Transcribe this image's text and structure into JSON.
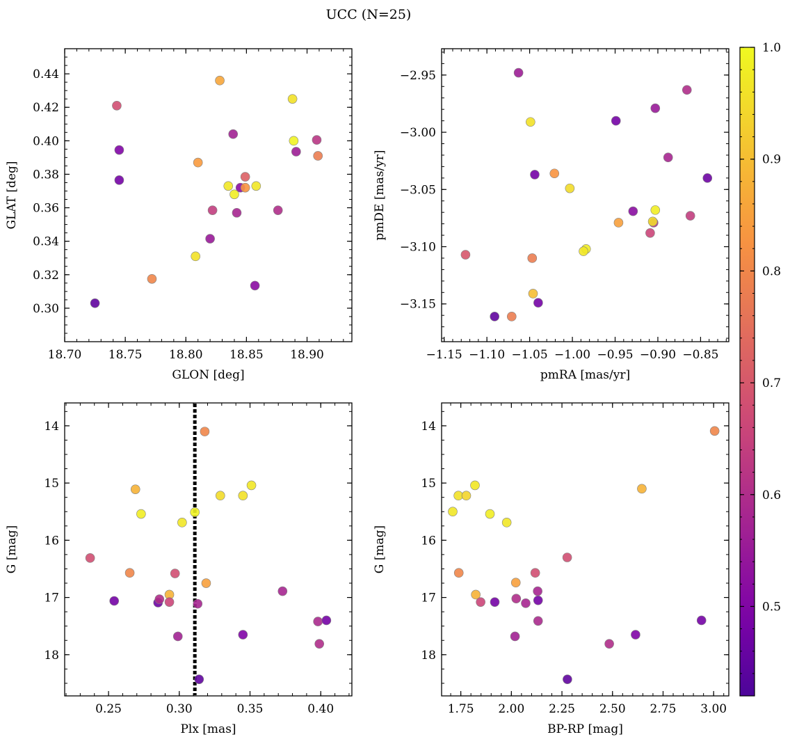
{
  "figure": {
    "title": "UCC (N=25)"
  },
  "colors": {
    "colormap": "plasma",
    "point_edge": "#808080",
    "reference_line": "#000000"
  },
  "chart_data": [
    {
      "type": "scatter",
      "panel": "top-left",
      "xlabel": "GLON [deg]",
      "ylabel": "GLAT [deg]",
      "xlim": [
        18.7,
        18.937
      ],
      "ylim": [
        0.28,
        0.455
      ],
      "xticks": [
        "18.70",
        "18.75",
        "18.80",
        "18.85",
        "18.90"
      ],
      "yticks": [
        "0.30",
        "0.32",
        "0.34",
        "0.36",
        "0.38",
        "0.40",
        "0.42",
        "0.44"
      ],
      "x_minor": 0.01,
      "y_minor": 0.005,
      "points": [
        {
          "x": 18.725,
          "y": 0.303,
          "c": 0.45
        },
        {
          "x": 18.745,
          "y": 0.3945,
          "c": 0.5
        },
        {
          "x": 18.745,
          "y": 0.3765,
          "c": 0.48
        },
        {
          "x": 18.743,
          "y": 0.421,
          "c": 0.68
        },
        {
          "x": 18.772,
          "y": 0.3175,
          "c": 0.8
        },
        {
          "x": 18.808,
          "y": 0.331,
          "c": 0.96
        },
        {
          "x": 18.81,
          "y": 0.387,
          "c": 0.84
        },
        {
          "x": 18.82,
          "y": 0.3415,
          "c": 0.55
        },
        {
          "x": 18.822,
          "y": 0.3585,
          "c": 0.64
        },
        {
          "x": 18.828,
          "y": 0.436,
          "c": 0.86
        },
        {
          "x": 18.835,
          "y": 0.373,
          "c": 0.97
        },
        {
          "x": 18.839,
          "y": 0.404,
          "c": 0.57
        },
        {
          "x": 18.84,
          "y": 0.368,
          "c": 0.98
        },
        {
          "x": 18.842,
          "y": 0.357,
          "c": 0.58
        },
        {
          "x": 18.845,
          "y": 0.372,
          "c": 0.52
        },
        {
          "x": 18.849,
          "y": 0.3785,
          "c": 0.72
        },
        {
          "x": 18.849,
          "y": 0.372,
          "c": 0.83
        },
        {
          "x": 18.857,
          "y": 0.3135,
          "c": 0.52
        },
        {
          "x": 18.858,
          "y": 0.373,
          "c": 0.97
        },
        {
          "x": 18.876,
          "y": 0.3585,
          "c": 0.6
        },
        {
          "x": 18.888,
          "y": 0.425,
          "c": 0.96
        },
        {
          "x": 18.889,
          "y": 0.4,
          "c": 0.99
        },
        {
          "x": 18.891,
          "y": 0.3935,
          "c": 0.56
        },
        {
          "x": 18.908,
          "y": 0.4005,
          "c": 0.62
        },
        {
          "x": 18.909,
          "y": 0.391,
          "c": 0.78
        }
      ]
    },
    {
      "type": "scatter",
      "panel": "top-right",
      "xlabel": "pmRA [mas/yr]",
      "ylabel": "pmDE [mas/yr]",
      "xlim": [
        -1.153,
        -0.817
      ],
      "ylim": [
        -3.183,
        -2.927
      ],
      "xticks": [
        "−1.15",
        "−1.10",
        "−1.05",
        "−1.00",
        "−0.95",
        "−0.90",
        "−0.85"
      ],
      "yticks": [
        "−2.95",
        "−3.00",
        "−3.05",
        "−3.10",
        "−3.15"
      ],
      "x_minor": 0.01,
      "y_minor": 0.01,
      "points": [
        {
          "x": -1.063,
          "y": -2.948,
          "c": 0.56
        },
        {
          "x": -0.866,
          "y": -2.963,
          "c": 0.6
        },
        {
          "x": -0.903,
          "y": -2.979,
          "c": 0.55
        },
        {
          "x": -1.049,
          "y": -2.991,
          "c": 0.96
        },
        {
          "x": -0.949,
          "y": -2.99,
          "c": 0.48
        },
        {
          "x": -0.888,
          "y": -3.022,
          "c": 0.58
        },
        {
          "x": -1.044,
          "y": -3.037,
          "c": 0.48
        },
        {
          "x": -1.021,
          "y": -3.036,
          "c": 0.83
        },
        {
          "x": -0.842,
          "y": -3.04,
          "c": 0.47
        },
        {
          "x": -1.003,
          "y": -3.049,
          "c": 0.95
        },
        {
          "x": -0.929,
          "y": -3.069,
          "c": 0.52
        },
        {
          "x": -0.903,
          "y": -3.068,
          "c": 0.98
        },
        {
          "x": -0.862,
          "y": -3.073,
          "c": 0.64
        },
        {
          "x": -0.946,
          "y": -3.079,
          "c": 0.85
        },
        {
          "x": -0.905,
          "y": -3.079,
          "c": 0.6
        },
        {
          "x": -0.906,
          "y": -3.078,
          "c": 0.95
        },
        {
          "x": -0.909,
          "y": -3.088,
          "c": 0.66
        },
        {
          "x": -0.984,
          "y": -3.102,
          "c": 0.98
        },
        {
          "x": -0.987,
          "y": -3.104,
          "c": 0.97
        },
        {
          "x": -1.125,
          "y": -3.107,
          "c": 0.7
        },
        {
          "x": -1.047,
          "y": -3.11,
          "c": 0.78
        },
        {
          "x": -1.046,
          "y": -3.141,
          "c": 0.9
        },
        {
          "x": -1.04,
          "y": -3.149,
          "c": 0.48
        },
        {
          "x": -1.091,
          "y": -3.161,
          "c": 0.45
        },
        {
          "x": -1.071,
          "y": -3.161,
          "c": 0.78
        }
      ]
    },
    {
      "type": "scatter",
      "panel": "bottom-left",
      "xlabel": "Plx [mas]",
      "ylabel": "G [mag]",
      "xlim": [
        0.219,
        0.422
      ],
      "ylim": [
        18.72,
        13.6
      ],
      "y_inverted": true,
      "xticks": [
        "0.25",
        "0.30",
        "0.35",
        "0.40"
      ],
      "yticks": [
        "14",
        "15",
        "16",
        "17",
        "18"
      ],
      "x_minor": 0.01,
      "y_minor": 0.25,
      "reference_line": {
        "orientation": "vertical",
        "x": 0.311,
        "style": "dotted"
      },
      "points": [
        {
          "x": 0.237,
          "y": 16.31,
          "c": 0.68
        },
        {
          "x": 0.254,
          "y": 17.06,
          "c": 0.48
        },
        {
          "x": 0.265,
          "y": 16.57,
          "c": 0.8
        },
        {
          "x": 0.269,
          "y": 15.11,
          "c": 0.88
        },
        {
          "x": 0.273,
          "y": 15.54,
          "c": 0.98
        },
        {
          "x": 0.285,
          "y": 17.09,
          "c": 0.47
        },
        {
          "x": 0.286,
          "y": 17.03,
          "c": 0.6
        },
        {
          "x": 0.293,
          "y": 16.95,
          "c": 0.88
        },
        {
          "x": 0.293,
          "y": 17.08,
          "c": 0.66
        },
        {
          "x": 0.297,
          "y": 16.58,
          "c": 0.68
        },
        {
          "x": 0.299,
          "y": 17.68,
          "c": 0.57
        },
        {
          "x": 0.302,
          "y": 15.69,
          "c": 0.97
        },
        {
          "x": 0.311,
          "y": 15.51,
          "c": 0.99
        },
        {
          "x": 0.313,
          "y": 17.11,
          "c": 0.58
        },
        {
          "x": 0.314,
          "y": 18.43,
          "c": 0.45
        },
        {
          "x": 0.318,
          "y": 14.1,
          "c": 0.8
        },
        {
          "x": 0.319,
          "y": 16.75,
          "c": 0.85
        },
        {
          "x": 0.329,
          "y": 15.22,
          "c": 0.95
        },
        {
          "x": 0.345,
          "y": 15.22,
          "c": 0.96
        },
        {
          "x": 0.345,
          "y": 17.65,
          "c": 0.5
        },
        {
          "x": 0.351,
          "y": 15.04,
          "c": 0.97
        },
        {
          "x": 0.373,
          "y": 16.89,
          "c": 0.58
        },
        {
          "x": 0.398,
          "y": 17.42,
          "c": 0.59
        },
        {
          "x": 0.399,
          "y": 17.81,
          "c": 0.6
        },
        {
          "x": 0.404,
          "y": 17.4,
          "c": 0.48
        }
      ]
    },
    {
      "type": "scatter",
      "panel": "bottom-right",
      "xlabel": "BP-RP [mag]",
      "ylabel": "G [mag]",
      "xlim": [
        1.655,
        3.075
      ],
      "ylim": [
        18.72,
        13.6
      ],
      "y_inverted": true,
      "xticks": [
        "1.75",
        "2.00",
        "2.25",
        "2.50",
        "2.75",
        "3.00"
      ],
      "yticks": [
        "14",
        "15",
        "16",
        "17",
        "18"
      ],
      "x_minor": 0.05,
      "y_minor": 0.25,
      "points": [
        {
          "x": 1.71,
          "y": 15.5,
          "c": 0.97
        },
        {
          "x": 1.738,
          "y": 15.22,
          "c": 0.96
        },
        {
          "x": 1.74,
          "y": 16.57,
          "c": 0.8
        },
        {
          "x": 1.777,
          "y": 15.22,
          "c": 0.94
        },
        {
          "x": 1.82,
          "y": 15.04,
          "c": 0.97
        },
        {
          "x": 1.824,
          "y": 16.95,
          "c": 0.88
        },
        {
          "x": 1.848,
          "y": 17.08,
          "c": 0.66
        },
        {
          "x": 1.894,
          "y": 15.54,
          "c": 0.98
        },
        {
          "x": 1.918,
          "y": 17.08,
          "c": 0.48
        },
        {
          "x": 1.977,
          "y": 15.69,
          "c": 0.97
        },
        {
          "x": 2.018,
          "y": 17.68,
          "c": 0.57
        },
        {
          "x": 2.022,
          "y": 16.74,
          "c": 0.85
        },
        {
          "x": 2.024,
          "y": 17.02,
          "c": 0.6
        },
        {
          "x": 2.071,
          "y": 17.1,
          "c": 0.58
        },
        {
          "x": 2.118,
          "y": 16.57,
          "c": 0.68
        },
        {
          "x": 2.13,
          "y": 16.89,
          "c": 0.58
        },
        {
          "x": 2.132,
          "y": 17.05,
          "c": 0.48
        },
        {
          "x": 2.132,
          "y": 17.41,
          "c": 0.59
        },
        {
          "x": 2.276,
          "y": 16.3,
          "c": 0.68
        },
        {
          "x": 2.277,
          "y": 18.43,
          "c": 0.45
        },
        {
          "x": 2.484,
          "y": 17.81,
          "c": 0.6
        },
        {
          "x": 2.614,
          "y": 17.65,
          "c": 0.5
        },
        {
          "x": 2.645,
          "y": 15.1,
          "c": 0.88
        },
        {
          "x": 2.94,
          "y": 17.4,
          "c": 0.48
        },
        {
          "x": 3.005,
          "y": 14.09,
          "c": 0.8
        }
      ]
    }
  ],
  "colorbar": {
    "colormap": "plasma",
    "range": [
      0.42,
      1.0
    ],
    "ticks": [
      "0.5",
      "0.6",
      "0.7",
      "0.8",
      "0.9",
      "1.0"
    ],
    "minor": 0.02
  }
}
